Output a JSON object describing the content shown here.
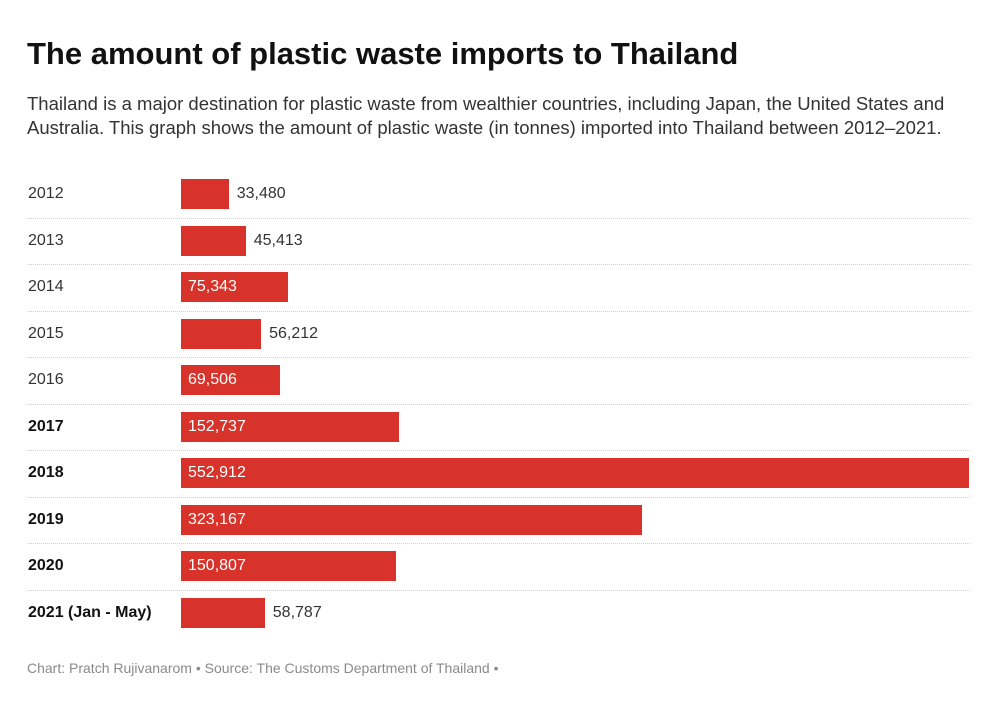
{
  "title": "The amount of plastic waste imports to Thailand",
  "subtitle": "Thailand is a major destination for plastic waste from wealthier countries, including Japan, the United States and Australia. This graph shows the amount of plastic waste (in tonnes) imported into Thailand between 2012–2021.",
  "footer": "Chart: Pratch Rujivanarom • Source: The Customs Department of Thailand •",
  "colors": {
    "bar": "#d7332b",
    "text": "#1a1a1a",
    "footer": "#8a8a8a"
  },
  "chart_data": {
    "type": "bar",
    "orientation": "horizontal",
    "categories": [
      "2012",
      "2013",
      "2014",
      "2015",
      "2016",
      "2017",
      "2018",
      "2019",
      "2020",
      "2021 (Jan - May)"
    ],
    "values": [
      33480,
      45413,
      75343,
      56212,
      69506,
      152737,
      552912,
      323167,
      150807,
      58787
    ],
    "value_labels": [
      "33,480",
      "45,413",
      "75,343",
      "56,212",
      "69,506",
      "152,737",
      "552,912",
      "323,167",
      "150,807",
      "58,787"
    ],
    "bold_categories": [
      "2017",
      "2018",
      "2019",
      "2020",
      "2021 (Jan - May)"
    ],
    "xlim": [
      0,
      552912
    ],
    "grid": false,
    "legend": "none"
  }
}
